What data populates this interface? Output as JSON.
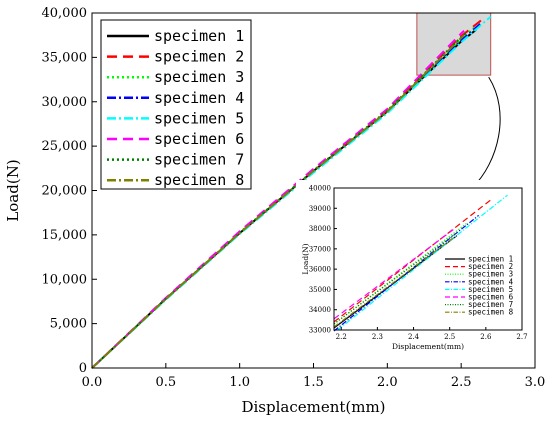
{
  "chart_data": [
    {
      "type": "line",
      "title": "",
      "xlabel": "Displacement(mm)",
      "ylabel": "Load(N)",
      "xlim": [
        0,
        3.0
      ],
      "ylim": [
        0,
        40000
      ],
      "x_ticks": [
        "0.0",
        "0.5",
        "1.0",
        "1.5",
        "2.0",
        "2.5",
        "3.0"
      ],
      "y_ticks": [
        "0",
        "5,000",
        "10,000",
        "15,000",
        "20,000",
        "25,000",
        "30,000",
        "35,000",
        "40,000"
      ],
      "grid": false,
      "legend_position": "top-left",
      "series": [
        {
          "name": "specimen 1",
          "color": "#000000",
          "dash": "solid",
          "points": [
            [
              0,
              0
            ],
            [
              0.5,
              7800
            ],
            [
              1.0,
              15200
            ],
            [
              1.5,
              22200
            ],
            [
              2.0,
              28900
            ],
            [
              2.5,
              36800
            ],
            [
              2.6,
              38100
            ]
          ]
        },
        {
          "name": "specimen 2",
          "color": "#ff0000",
          "dash": "dash",
          "points": [
            [
              0,
              0
            ],
            [
              0.5,
              7850
            ],
            [
              1.0,
              15300
            ],
            [
              1.5,
              22300
            ],
            [
              2.0,
              29000
            ],
            [
              2.5,
              37400
            ],
            [
              2.66,
              39500
            ]
          ]
        },
        {
          "name": "specimen 3",
          "color": "#00ff00",
          "dash": "dot",
          "points": [
            [
              0,
              0
            ],
            [
              0.5,
              7800
            ],
            [
              1.0,
              15250
            ],
            [
              1.5,
              22250
            ],
            [
              2.0,
              28950
            ],
            [
              2.5,
              37100
            ],
            [
              2.6,
              38500
            ]
          ]
        },
        {
          "name": "specimen 4",
          "color": "#0000ff",
          "dash": "dashdot",
          "points": [
            [
              0,
              0
            ],
            [
              0.5,
              7750
            ],
            [
              1.0,
              15150
            ],
            [
              1.5,
              22100
            ],
            [
              2.0,
              28800
            ],
            [
              2.5,
              36900
            ],
            [
              2.63,
              38800
            ]
          ]
        },
        {
          "name": "specimen 5",
          "color": "#00ffff",
          "dash": "dashdot",
          "points": [
            [
              0,
              0
            ],
            [
              0.5,
              7700
            ],
            [
              1.0,
              15100
            ],
            [
              1.5,
              22000
            ],
            [
              2.0,
              28700
            ],
            [
              2.5,
              36700
            ],
            [
              2.7,
              39600
            ]
          ]
        },
        {
          "name": "specimen 6",
          "color": "#ff00ff",
          "dash": "dash",
          "points": [
            [
              0,
              0
            ],
            [
              0.5,
              7900
            ],
            [
              1.0,
              15400
            ],
            [
              1.5,
              22450
            ],
            [
              2.0,
              29200
            ],
            [
              2.5,
              37700
            ],
            [
              2.52,
              38000
            ]
          ]
        },
        {
          "name": "specimen 7",
          "color": "#008000",
          "dash": "dot",
          "points": [
            [
              0,
              0
            ],
            [
              0.5,
              7800
            ],
            [
              1.0,
              15250
            ],
            [
              1.5,
              22250
            ],
            [
              2.0,
              29000
            ],
            [
              2.5,
              37300
            ],
            [
              2.53,
              37700
            ]
          ]
        },
        {
          "name": "specimen 8",
          "color": "#808000",
          "dash": "dashdot",
          "points": [
            [
              0,
              0
            ],
            [
              0.5,
              7780
            ],
            [
              1.0,
              15200
            ],
            [
              1.5,
              22200
            ],
            [
              2.0,
              28900
            ],
            [
              2.5,
              37200
            ],
            [
              2.52,
              37500
            ]
          ]
        }
      ],
      "zoom_region": {
        "x": [
          2.2,
          2.7
        ],
        "y": [
          33000,
          40000
        ]
      }
    },
    {
      "type": "line",
      "title": "",
      "xlabel": "Displacement(mm)",
      "ylabel": "Load(N)",
      "xlim": [
        2.18,
        2.7
      ],
      "ylim": [
        33000,
        40000
      ],
      "x_ticks": [
        "2.2",
        "2.3",
        "2.4",
        "2.5",
        "2.6",
        "2.7"
      ],
      "y_ticks": [
        "33000",
        "34000",
        "35000",
        "36000",
        "37000",
        "38000",
        "39000",
        "40000"
      ],
      "grid": false,
      "legend_position": "bottom-right",
      "series": [
        {
          "name": "specimen 1",
          "color": "#000000",
          "dash": "solid",
          "points": [
            [
              2.18,
              33100
            ],
            [
              2.52,
              37650
            ]
          ]
        },
        {
          "name": "specimen 2",
          "color": "#ff0000",
          "dash": "dash",
          "points": [
            [
              2.18,
              33400
            ],
            [
              2.62,
              39500
            ]
          ]
        },
        {
          "name": "specimen 3",
          "color": "#00ff00",
          "dash": "dot",
          "points": [
            [
              2.18,
              33300
            ],
            [
              2.55,
              38300
            ]
          ]
        },
        {
          "name": "specimen 4",
          "color": "#0000ff",
          "dash": "dashdot",
          "points": [
            [
              2.18,
              32950
            ],
            [
              2.58,
              38650
            ]
          ]
        },
        {
          "name": "specimen 5",
          "color": "#00ffff",
          "dash": "dashdot",
          "points": [
            [
              2.19,
              33000
            ],
            [
              2.66,
              39650
            ]
          ]
        },
        {
          "name": "specimen 6",
          "color": "#ff00ff",
          "dash": "dash",
          "points": [
            [
              2.18,
              33550
            ],
            [
              2.51,
              37950
            ]
          ]
        },
        {
          "name": "specimen 7",
          "color": "#008000",
          "dash": "dot",
          "points": [
            [
              2.18,
              33300
            ],
            [
              2.52,
              37800
            ]
          ]
        },
        {
          "name": "specimen 8",
          "color": "#808000",
          "dash": "dashdot",
          "points": [
            [
              2.18,
              33150
            ],
            [
              2.51,
              37550
            ]
          ]
        }
      ]
    }
  ]
}
